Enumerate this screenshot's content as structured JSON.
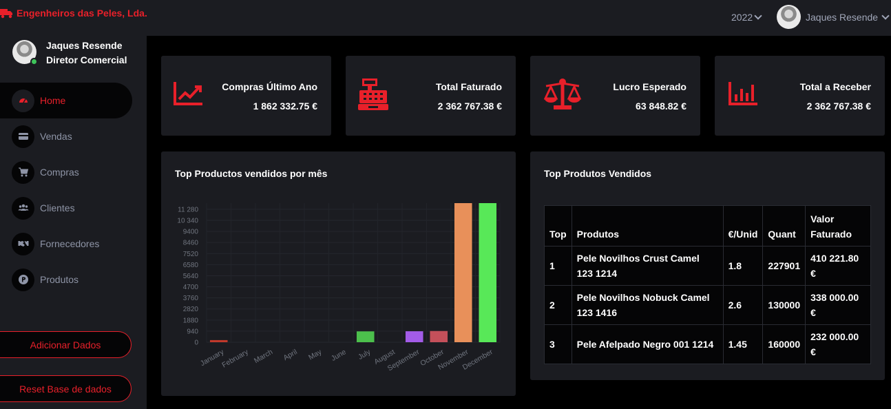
{
  "brand": {
    "name": "Engenheiros das Peles, Lda.",
    "color": "#e8202a"
  },
  "header": {
    "year": "2022",
    "user_name": "Jaques Resende"
  },
  "profile": {
    "name": "Jaques Resende",
    "role": "Diretor Comercial"
  },
  "sidebar": {
    "items": [
      {
        "label": "Home",
        "icon": "dashboard-icon",
        "active": true
      },
      {
        "label": "Vendas",
        "icon": "credit-card-icon"
      },
      {
        "label": "Compras",
        "icon": "cart-icon"
      },
      {
        "label": "Clientes",
        "icon": "users-icon"
      },
      {
        "label": "Fornecedores",
        "icon": "handshake-icon"
      },
      {
        "label": "Produtos",
        "icon": "product-icon"
      }
    ],
    "add_button": "Adicionar Dados",
    "reset_button": "Reset Base de dados"
  },
  "stats": [
    {
      "label": "Compras Último Ano",
      "value": "1 862 332.75 €",
      "icon": "trend-chart-icon"
    },
    {
      "label": "Total Faturado",
      "value": "2 362 767.38 €",
      "icon": "cash-register-icon"
    },
    {
      "label": "Lucro Esperado",
      "value": "63 848.82 €",
      "icon": "balance-scale-icon"
    },
    {
      "label": "Total a Receber",
      "value": "2 362 767.38 €",
      "icon": "bar-chart-icon"
    }
  ],
  "chart_panel": {
    "title": "Top Productos vendidos por mês"
  },
  "chart_data": {
    "type": "bar",
    "categories": [
      "January",
      "February",
      "March",
      "April",
      "May",
      "June",
      "July",
      "August",
      "September",
      "October",
      "November",
      "December"
    ],
    "values": [
      180,
      0,
      0,
      0,
      0,
      0,
      920,
      0,
      930,
      950,
      11800,
      11800
    ],
    "colors": [
      "#c0392b",
      "#888888",
      "#888888",
      "#888888",
      "#888888",
      "#888888",
      "#4cc04c",
      "#888888",
      "#a35ce8",
      "#c4505a",
      "#e8905a",
      "#58e858"
    ],
    "yticks": [
      "0",
      "940",
      "1880",
      "2820",
      "3760",
      "4700",
      "5640",
      "6580",
      "7520",
      "8460",
      "9400",
      "10 340",
      "11 280"
    ],
    "ylim": [
      0,
      11800
    ],
    "grid": true
  },
  "table_panel": {
    "title": "Top Produtos Vendidos",
    "headers": [
      "Top",
      "Produtos",
      "€/Unid",
      "Quant",
      "Valor Faturado"
    ],
    "rows": [
      [
        "1",
        "Pele Novilhos Crust Camel 123 1214",
        "1.8",
        "227901",
        "410 221.80 €"
      ],
      [
        "2",
        "Pele Novilhos Nobuck Camel 123 1416",
        "2.6",
        "130000",
        "338 000.00 €"
      ],
      [
        "3",
        "Pele Afelpado Negro 001 1214",
        "1.45",
        "160000",
        "232 000.00 €"
      ]
    ]
  }
}
